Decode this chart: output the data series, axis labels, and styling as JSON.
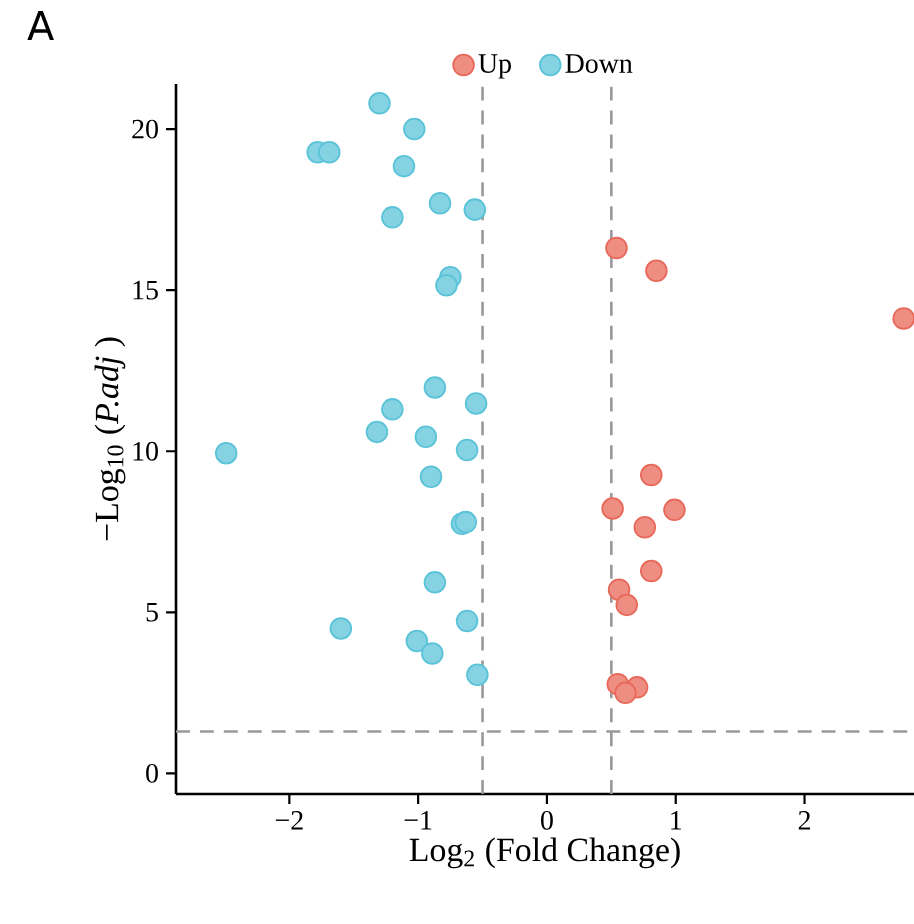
{
  "chart_data": {
    "type": "scatter",
    "xlabel": "Log$_{2}$ (Fold Change)",
    "ylabel": "−Log$_{10}$ (*P.adj* )",
    "annotations": [
      "A"
    ],
    "xlim": [
      -2.88,
      2.85
    ],
    "ylim": [
      -0.64,
      21.4
    ],
    "xticks": [
      {
        "value": -2,
        "label": "−2"
      },
      {
        "value": -1,
        "label": "−1"
      },
      0,
      1,
      2
    ],
    "yticks": [
      0,
      5,
      10,
      15,
      20
    ],
    "legend": "top",
    "grid": false,
    "marker": "circle",
    "series": [
      {
        "name": "Up",
        "color": "#e8695a",
        "x": [
          0.54,
          0.85,
          2.77,
          0.81,
          0.51,
          0.99,
          0.76,
          0.81,
          0.56,
          0.62,
          0.55,
          0.7,
          0.61
        ],
        "values": [
          16.31,
          15.6,
          14.12,
          9.26,
          8.22,
          8.18,
          7.64,
          6.28,
          5.7,
          5.23,
          2.77,
          2.67,
          2.5
        ]
      },
      {
        "name": "Down",
        "color": "#5bc3d8",
        "x": [
          -1.3,
          -1.03,
          -1.78,
          -1.69,
          -1.11,
          -0.83,
          -0.56,
          -1.2,
          -0.75,
          -0.78,
          -0.87,
          -0.55,
          -1.2,
          -1.32,
          -0.94,
          -2.49,
          -0.62,
          -0.9,
          -0.66,
          -0.63,
          -0.87,
          -1.6,
          -0.62,
          -1.01,
          -0.89,
          -0.54
        ],
        "values": [
          20.8,
          20.0,
          19.28,
          19.28,
          18.85,
          17.7,
          17.5,
          17.26,
          15.4,
          15.15,
          11.98,
          11.48,
          11.3,
          10.6,
          10.45,
          9.94,
          10.04,
          9.21,
          7.75,
          7.8,
          5.93,
          4.5,
          4.73,
          4.11,
          3.72,
          3.06
        ]
      }
    ],
    "ref_lines": [
      {
        "axis": "x",
        "value": -0.5,
        "color": "#999999",
        "line_style": "dashed"
      },
      {
        "axis": "x",
        "value": 0.5,
        "color": "#999999",
        "line_style": "dashed"
      },
      {
        "axis": "y",
        "value": 1.3,
        "color": "#999999",
        "line_style": "dashed"
      }
    ]
  }
}
